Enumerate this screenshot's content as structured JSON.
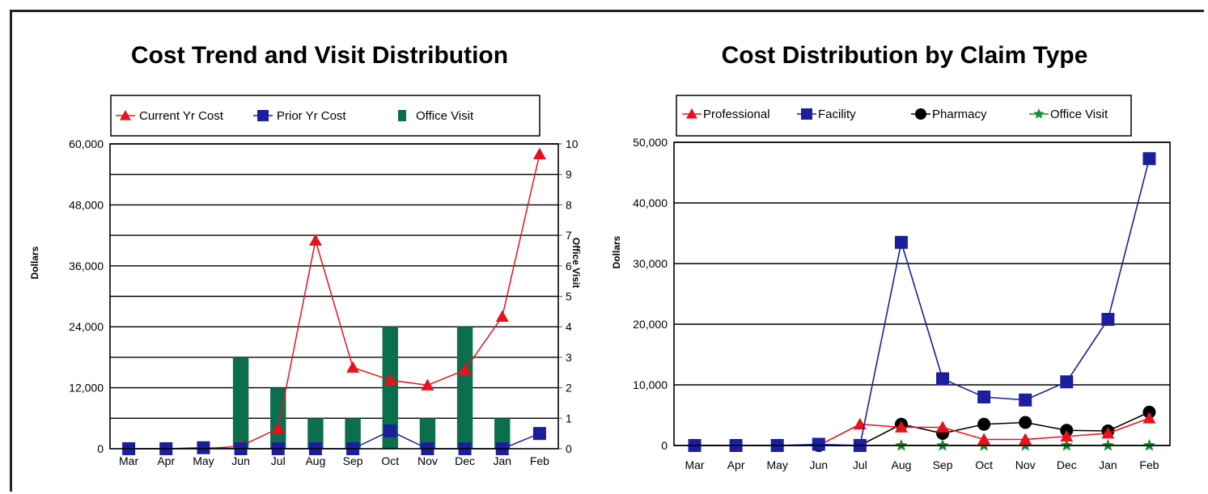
{
  "chart_data": [
    {
      "type": "bar+line",
      "title": "Cost Trend and Visit Distribution",
      "ylabel": "Dollars",
      "y2label": "Office Visit",
      "categories": [
        "Mar",
        "Apr",
        "May",
        "Jun",
        "Jul",
        "Aug",
        "Sep",
        "Oct",
        "Nov",
        "Dec",
        "Jan",
        "Feb"
      ],
      "ylim": [
        0,
        60000
      ],
      "yticks": [
        "0",
        "12,000",
        "24,000",
        "36,000",
        "48,000",
        "60,000"
      ],
      "y2lim": [
        0,
        10
      ],
      "y2ticks": [
        "0",
        "1",
        "2",
        "3",
        "4",
        "5",
        "6",
        "7",
        "8",
        "9",
        "10"
      ],
      "legend_position": "top",
      "grid": true,
      "series": [
        {
          "name": "Current Yr Cost",
          "kind": "line",
          "marker": "triangle",
          "color": "#e8121f",
          "axis": "left",
          "values": [
            0,
            0,
            0,
            500,
            4000,
            41000,
            16000,
            13500,
            12500,
            15500,
            26000,
            58000
          ]
        },
        {
          "name": "Prior Yr Cost",
          "kind": "line",
          "marker": "square",
          "color": "#1b1f9e",
          "axis": "left",
          "values": [
            0,
            0,
            200,
            0,
            0,
            0,
            0,
            3500,
            0,
            0,
            0,
            3000
          ]
        },
        {
          "name": "Office Visit",
          "kind": "bar",
          "color": "#0b6e4c",
          "axis": "right",
          "values": [
            0,
            0,
            0,
            3,
            2,
            1,
            1,
            4,
            1,
            4,
            1,
            0
          ]
        }
      ]
    },
    {
      "type": "line",
      "title": "Cost Distribution by Claim Type",
      "ylabel": "Dollars",
      "categories": [
        "Mar",
        "Apr",
        "May",
        "Jun",
        "Jul",
        "Aug",
        "Sep",
        "Oct",
        "Nov",
        "Dec",
        "Jan",
        "Feb"
      ],
      "ylim": [
        0,
        50000
      ],
      "yticks": [
        "0",
        "10,000",
        "20,000",
        "30,000",
        "40,000",
        "50,000"
      ],
      "legend_position": "top",
      "grid": true,
      "series": [
        {
          "name": "Professional",
          "marker": "triangle",
          "color": "#e8121f",
          "values": [
            0,
            0,
            0,
            0,
            3500,
            3000,
            3000,
            1000,
            1000,
            1500,
            2000,
            4500
          ]
        },
        {
          "name": "Facility",
          "marker": "square",
          "color": "#1b1f9e",
          "values": [
            0,
            0,
            0,
            200,
            0,
            33500,
            11000,
            8000,
            7500,
            10500,
            20800,
            47300
          ]
        },
        {
          "name": "Pharmacy",
          "marker": "circle",
          "color": "#000000",
          "values": [
            0,
            0,
            0,
            0,
            0,
            3500,
            2000,
            3500,
            3800,
            2500,
            2400,
            5500
          ]
        },
        {
          "name": "Office Visit",
          "marker": "star",
          "color": "#1a8a2a",
          "values": [
            0,
            0,
            0,
            0,
            0,
            0,
            0,
            0,
            0,
            0,
            0,
            0
          ]
        }
      ]
    }
  ]
}
